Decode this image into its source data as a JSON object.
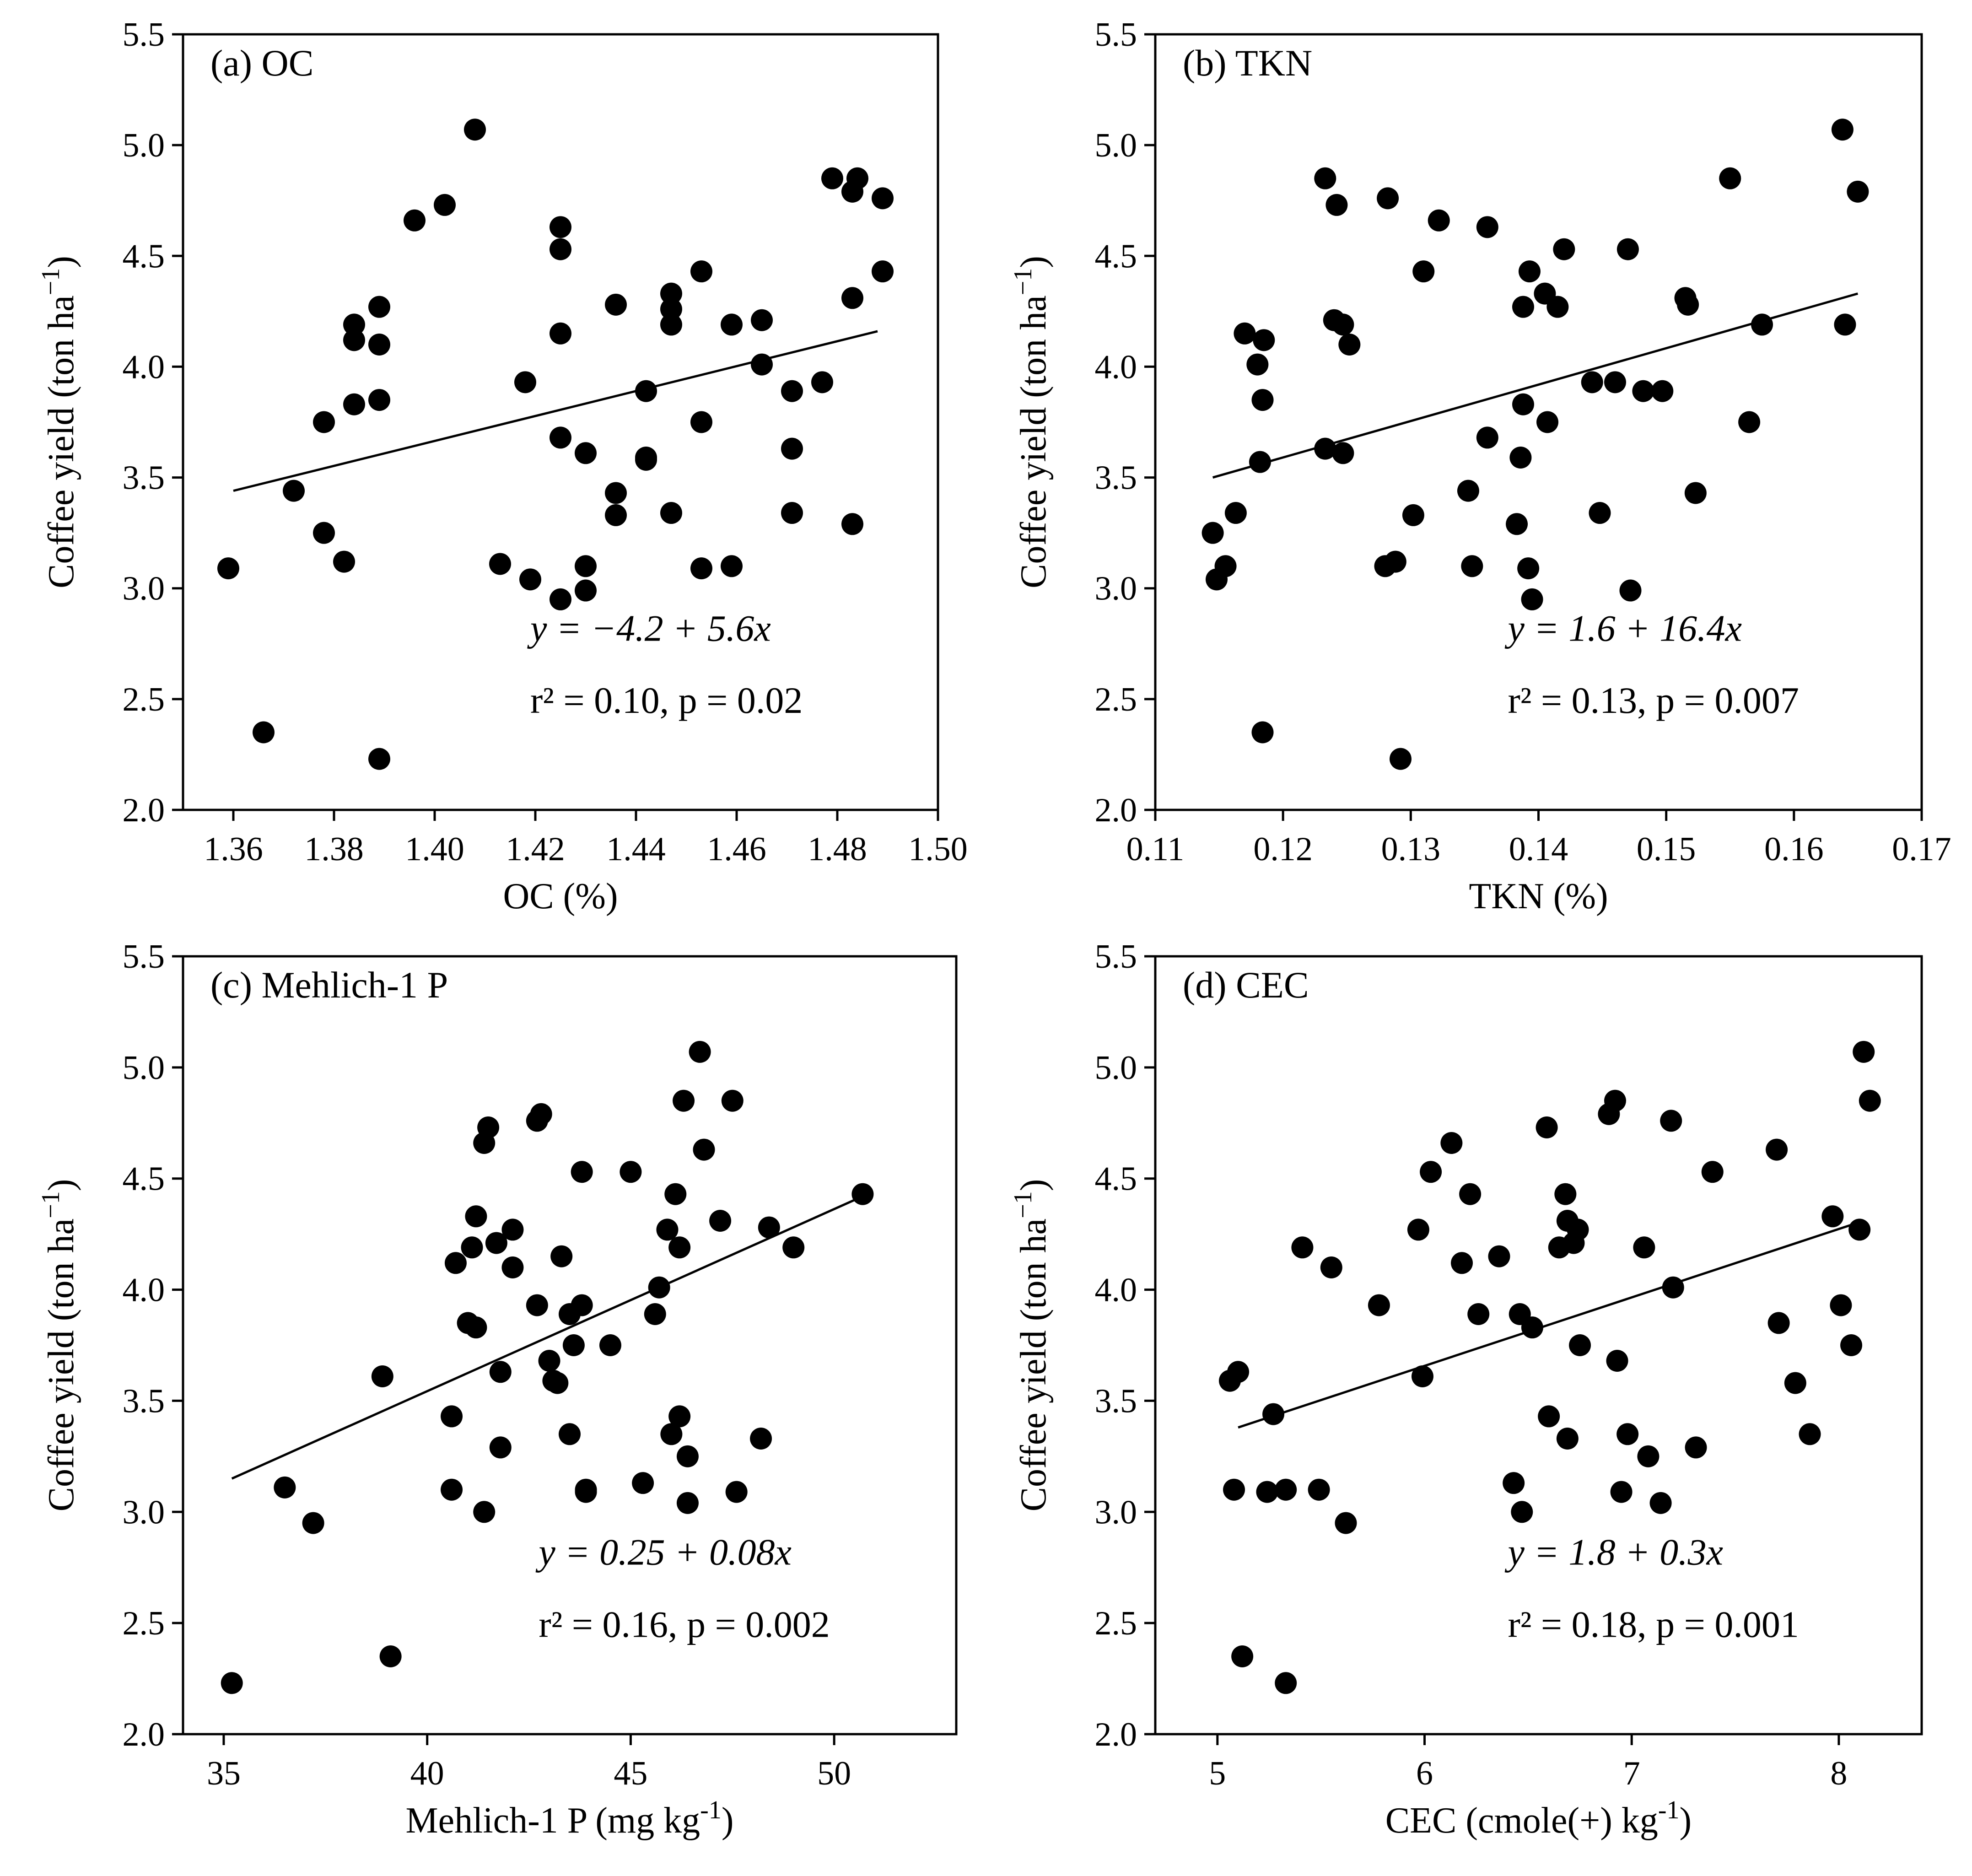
{
  "figure": {
    "background": "#ffffff",
    "marker_color": "#000000",
    "line_color": "#000000"
  },
  "chart_data": [
    {
      "type": "scatter",
      "panel_label": "(a) OC",
      "xlabel": "OC (%)",
      "ylabel": "Coffee yield (ton ha",
      "ylabel_sup": "−1",
      "ylabel_close": ")",
      "xlim": [
        1.35,
        1.5
      ],
      "ylim": [
        2.0,
        5.5
      ],
      "xticks": [
        "1.36",
        "1.38",
        "1.40",
        "1.42",
        "1.44",
        "1.46",
        "1.48",
        "1.50"
      ],
      "xtick_values": [
        1.36,
        1.38,
        1.4,
        1.42,
        1.44,
        1.46,
        1.48,
        1.5
      ],
      "yticks": [
        "2.0",
        "2.5",
        "3.0",
        "3.5",
        "4.0",
        "4.5",
        "5.0",
        "5.5"
      ],
      "ytick_values": [
        2.0,
        2.5,
        3.0,
        3.5,
        4.0,
        4.5,
        5.0,
        5.5
      ],
      "equation": "y = −4.2 + 5.6x",
      "stats": "r² = 0.10, p = 0.02",
      "fit": {
        "x": [
          1.36,
          1.488
        ],
        "y": [
          3.44,
          4.16
        ]
      },
      "points": [
        [
          1.359,
          3.09
        ],
        [
          1.366,
          2.35
        ],
        [
          1.372,
          3.44
        ],
        [
          1.378,
          3.75
        ],
        [
          1.378,
          3.25
        ],
        [
          1.382,
          3.12
        ],
        [
          1.384,
          4.19
        ],
        [
          1.384,
          4.12
        ],
        [
          1.384,
          3.83
        ],
        [
          1.389,
          4.27
        ],
        [
          1.389,
          4.1
        ],
        [
          1.389,
          3.85
        ],
        [
          1.389,
          2.23
        ],
        [
          1.396,
          4.66
        ],
        [
          1.402,
          4.73
        ],
        [
          1.408,
          5.07
        ],
        [
          1.413,
          3.11
        ],
        [
          1.418,
          3.93
        ],
        [
          1.419,
          3.04
        ],
        [
          1.425,
          4.63
        ],
        [
          1.425,
          4.53
        ],
        [
          1.425,
          4.15
        ],
        [
          1.425,
          3.68
        ],
        [
          1.425,
          2.95
        ],
        [
          1.43,
          3.61
        ],
        [
          1.43,
          3.1
        ],
        [
          1.43,
          2.99
        ],
        [
          1.436,
          4.28
        ],
        [
          1.436,
          3.43
        ],
        [
          1.436,
          3.33
        ],
        [
          1.442,
          3.89
        ],
        [
          1.442,
          3.58
        ],
        [
          1.442,
          3.59
        ],
        [
          1.447,
          4.33
        ],
        [
          1.447,
          4.26
        ],
        [
          1.447,
          4.19
        ],
        [
          1.447,
          3.34
        ],
        [
          1.453,
          4.43
        ],
        [
          1.453,
          3.75
        ],
        [
          1.453,
          3.09
        ],
        [
          1.459,
          4.19
        ],
        [
          1.459,
          3.1
        ],
        [
          1.465,
          4.21
        ],
        [
          1.465,
          4.01
        ],
        [
          1.471,
          3.89
        ],
        [
          1.471,
          3.63
        ],
        [
          1.471,
          3.34
        ],
        [
          1.477,
          3.93
        ],
        [
          1.479,
          4.85
        ],
        [
          1.483,
          4.79
        ],
        [
          1.483,
          4.31
        ],
        [
          1.483,
          3.29
        ],
        [
          1.484,
          4.85
        ],
        [
          1.489,
          4.76
        ],
        [
          1.489,
          4.43
        ]
      ]
    },
    {
      "type": "scatter",
      "panel_label": "(b) TKN",
      "xlabel": "TKN (%)",
      "ylabel": "Coffee yield (ton ha",
      "ylabel_sup": "−1",
      "ylabel_close": ")",
      "xlim": [
        0.11,
        0.17
      ],
      "ylim": [
        2.0,
        5.5
      ],
      "xticks": [
        "0.11",
        "0.12",
        "0.13",
        "0.14",
        "0.15",
        "0.16",
        "0.17"
      ],
      "xtick_values": [
        0.11,
        0.12,
        0.13,
        0.14,
        0.15,
        0.16,
        0.17
      ],
      "yticks": [
        "2.0",
        "2.5",
        "3.0",
        "3.5",
        "4.0",
        "4.5",
        "5.0",
        "5.5"
      ],
      "ytick_values": [
        2.0,
        2.5,
        3.0,
        3.5,
        4.0,
        4.5,
        5.0,
        5.5
      ],
      "equation": "y = 1.6 + 16.4x",
      "stats": "r² = 0.13, p = 0.007",
      "fit": {
        "x": [
          0.1145,
          0.165
        ],
        "y": [
          3.5,
          4.33
        ]
      },
      "points": [
        [
          0.1145,
          3.25
        ],
        [
          0.1148,
          3.04
        ],
        [
          0.1155,
          3.1
        ],
        [
          0.1163,
          3.34
        ],
        [
          0.117,
          4.15
        ],
        [
          0.118,
          4.01
        ],
        [
          0.1182,
          3.57
        ],
        [
          0.1184,
          3.85
        ],
        [
          0.1185,
          4.12
        ],
        [
          0.1184,
          2.35
        ],
        [
          0.1233,
          4.85
        ],
        [
          0.1233,
          3.63
        ],
        [
          0.124,
          4.21
        ],
        [
          0.1242,
          4.73
        ],
        [
          0.1247,
          4.19
        ],
        [
          0.1247,
          3.61
        ],
        [
          0.1252,
          4.1
        ],
        [
          0.1282,
          4.76
        ],
        [
          0.128,
          3.1
        ],
        [
          0.1288,
          3.12
        ],
        [
          0.1292,
          2.23
        ],
        [
          0.1302,
          3.33
        ],
        [
          0.131,
          4.43
        ],
        [
          0.1322,
          4.66
        ],
        [
          0.1345,
          3.44
        ],
        [
          0.1348,
          3.1
        ],
        [
          0.136,
          4.63
        ],
        [
          0.136,
          3.68
        ],
        [
          0.1383,
          3.29
        ],
        [
          0.1386,
          3.59
        ],
        [
          0.1388,
          4.27
        ],
        [
          0.1388,
          3.83
        ],
        [
          0.1392,
          3.09
        ],
        [
          0.1393,
          4.43
        ],
        [
          0.1395,
          2.95
        ],
        [
          0.1405,
          4.33
        ],
        [
          0.1407,
          3.75
        ],
        [
          0.1415,
          4.27
        ],
        [
          0.142,
          4.53
        ],
        [
          0.1442,
          3.93
        ],
        [
          0.1448,
          3.34
        ],
        [
          0.146,
          3.93
        ],
        [
          0.147,
          4.53
        ],
        [
          0.1472,
          2.99
        ],
        [
          0.1482,
          3.89
        ],
        [
          0.1497,
          3.89
        ],
        [
          0.1515,
          4.31
        ],
        [
          0.1517,
          4.28
        ],
        [
          0.1523,
          3.43
        ],
        [
          0.155,
          4.85
        ],
        [
          0.1565,
          3.75
        ],
        [
          0.1575,
          4.19
        ],
        [
          0.1638,
          5.07
        ],
        [
          0.164,
          4.19
        ],
        [
          0.165,
          4.79
        ]
      ]
    },
    {
      "type": "scatter",
      "panel_label": "(c) Mehlich-1 P",
      "xlabel": "Mehlich-1 P (mg kg",
      "xlabel_sup": "-1",
      "xlabel_close": ")",
      "ylabel": "Coffee yield (ton ha",
      "ylabel_sup": "−1",
      "ylabel_close": ")",
      "xlim": [
        34,
        53
      ],
      "ylim": [
        2.0,
        5.5
      ],
      "xticks": [
        "35",
        "40",
        "45",
        "50"
      ],
      "xtick_values": [
        35,
        40,
        45,
        50
      ],
      "yticks": [
        "2.0",
        "2.5",
        "3.0",
        "3.5",
        "4.0",
        "4.5",
        "5.0",
        "5.5"
      ],
      "ytick_values": [
        2.0,
        2.5,
        3.0,
        3.5,
        4.0,
        4.5,
        5.0,
        5.5
      ],
      "equation": "y = 0.25 + 0.08x",
      "stats": "r² = 0.16, p = 0.002",
      "fit": {
        "x": [
          35.2,
          50.7
        ],
        "y": [
          3.15,
          4.42
        ]
      },
      "points": [
        [
          35.2,
          2.23
        ],
        [
          36.5,
          3.11
        ],
        [
          37.2,
          2.95
        ],
        [
          38.9,
          3.61
        ],
        [
          39.1,
          2.35
        ],
        [
          40.6,
          3.43
        ],
        [
          40.6,
          3.1
        ],
        [
          40.7,
          4.12
        ],
        [
          41.0,
          3.85
        ],
        [
          41.1,
          4.19
        ],
        [
          41.2,
          4.33
        ],
        [
          41.2,
          3.83
        ],
        [
          41.4,
          4.66
        ],
        [
          41.5,
          4.73
        ],
        [
          41.4,
          3.0
        ],
        [
          41.7,
          4.21
        ],
        [
          41.8,
          3.63
        ],
        [
          41.8,
          3.29
        ],
        [
          42.1,
          4.27
        ],
        [
          42.1,
          4.1
        ],
        [
          42.7,
          4.76
        ],
        [
          42.8,
          4.79
        ],
        [
          42.7,
          3.93
        ],
        [
          43.0,
          3.68
        ],
        [
          43.1,
          3.59
        ],
        [
          43.2,
          3.58
        ],
        [
          43.3,
          4.15
        ],
        [
          43.5,
          3.89
        ],
        [
          43.6,
          3.75
        ],
        [
          43.5,
          3.35
        ],
        [
          43.8,
          4.53
        ],
        [
          43.8,
          3.93
        ],
        [
          43.9,
          3.1
        ],
        [
          43.9,
          3.09
        ],
        [
          44.5,
          3.75
        ],
        [
          45.0,
          4.53
        ],
        [
          45.3,
          3.13
        ],
        [
          45.6,
          3.89
        ],
        [
          45.7,
          4.01
        ],
        [
          45.9,
          4.27
        ],
        [
          46.0,
          3.35
        ],
        [
          46.1,
          4.43
        ],
        [
          46.2,
          4.19
        ],
        [
          46.2,
          3.43
        ],
        [
          46.3,
          4.85
        ],
        [
          46.4,
          3.25
        ],
        [
          46.4,
          3.04
        ],
        [
          46.7,
          5.07
        ],
        [
          46.8,
          4.63
        ],
        [
          47.2,
          4.31
        ],
        [
          47.5,
          4.85
        ],
        [
          47.6,
          3.09
        ],
        [
          48.2,
          3.33
        ],
        [
          48.4,
          4.28
        ],
        [
          49.0,
          4.19
        ],
        [
          50.7,
          4.43
        ]
      ]
    },
    {
      "type": "scatter",
      "panel_label": "(d) CEC",
      "xlabel": "CEC (cmole(+) kg",
      "xlabel_sup": "-1",
      "xlabel_close": ")",
      "ylabel": "Coffee yield (ton ha",
      "ylabel_sup": "−1",
      "ylabel_close": ")",
      "xlim": [
        4.7,
        8.4
      ],
      "ylim": [
        2.0,
        5.5
      ],
      "xticks": [
        "5",
        "6",
        "7",
        "8"
      ],
      "xtick_values": [
        5,
        6,
        7,
        8
      ],
      "yticks": [
        "2.0",
        "2.5",
        "3.0",
        "3.5",
        "4.0",
        "4.5",
        "5.0",
        "5.5"
      ],
      "ytick_values": [
        2.0,
        2.5,
        3.0,
        3.5,
        4.0,
        4.5,
        5.0,
        5.5
      ],
      "equation": "y = 1.8 + 0.3x",
      "stats": "r² = 0.18, p = 0.001",
      "fit": {
        "x": [
          5.1,
          8.12
        ],
        "y": [
          3.38,
          4.31
        ]
      },
      "points": [
        [
          5.06,
          3.59
        ],
        [
          5.08,
          3.1
        ],
        [
          5.1,
          3.63
        ],
        [
          5.12,
          2.35
        ],
        [
          5.24,
          3.09
        ],
        [
          5.27,
          3.44
        ],
        [
          5.33,
          3.1
        ],
        [
          5.33,
          2.23
        ],
        [
          5.41,
          4.19
        ],
        [
          5.49,
          3.1
        ],
        [
          5.55,
          4.1
        ],
        [
          5.62,
          2.95
        ],
        [
          5.78,
          3.93
        ],
        [
          5.97,
          4.27
        ],
        [
          5.99,
          3.61
        ],
        [
          6.03,
          4.53
        ],
        [
          6.13,
          4.66
        ],
        [
          6.18,
          4.12
        ],
        [
          6.22,
          4.43
        ],
        [
          6.26,
          3.89
        ],
        [
          6.36,
          4.15
        ],
        [
          6.43,
          3.13
        ],
        [
          6.46,
          3.89
        ],
        [
          6.47,
          3.0
        ],
        [
          6.52,
          3.83
        ],
        [
          6.59,
          4.73
        ],
        [
          6.6,
          3.43
        ],
        [
          6.65,
          4.19
        ],
        [
          6.68,
          4.43
        ],
        [
          6.69,
          4.31
        ],
        [
          6.69,
          3.33
        ],
        [
          6.72,
          4.21
        ],
        [
          6.74,
          4.27
        ],
        [
          6.75,
          3.75
        ],
        [
          6.89,
          4.79
        ],
        [
          6.92,
          4.85
        ],
        [
          6.93,
          3.68
        ],
        [
          6.95,
          3.09
        ],
        [
          6.98,
          3.35
        ],
        [
          7.06,
          4.19
        ],
        [
          7.08,
          3.25
        ],
        [
          7.14,
          3.04
        ],
        [
          7.19,
          4.76
        ],
        [
          7.2,
          4.01
        ],
        [
          7.31,
          3.29
        ],
        [
          7.39,
          4.53
        ],
        [
          7.7,
          4.63
        ],
        [
          7.71,
          3.85
        ],
        [
          7.79,
          3.58
        ],
        [
          7.86,
          3.35
        ],
        [
          7.97,
          4.33
        ],
        [
          8.01,
          3.93
        ],
        [
          8.06,
          3.75
        ],
        [
          8.1,
          4.27
        ],
        [
          8.12,
          5.07
        ],
        [
          8.15,
          4.85
        ]
      ]
    }
  ]
}
